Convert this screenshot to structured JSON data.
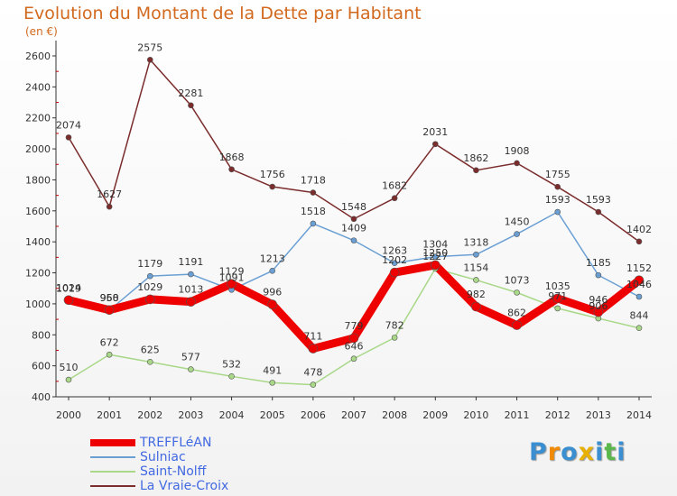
{
  "chart_data": {
    "type": "line",
    "title": "Evolution du Montant de la Dette par Habitant",
    "unit": "(en €)",
    "x": [
      "2000",
      "2001",
      "2002",
      "2003",
      "2004",
      "2005",
      "2006",
      "2007",
      "2008",
      "2009",
      "2010",
      "2011",
      "2012",
      "2013",
      "2014"
    ],
    "yticks": [
      400,
      600,
      800,
      1000,
      1200,
      1400,
      1600,
      1800,
      2000,
      2200,
      2400,
      2600
    ],
    "ylim": [
      400,
      2650
    ],
    "grid": false,
    "legend_placement": "bottom-left",
    "series": [
      {
        "name": "TREFFLéAN",
        "color": "#ee0000",
        "values": [
          1024,
          960,
          1029,
          1013,
          1129,
          996,
          711,
          779,
          1202,
          1250,
          982,
          862,
          1035,
          946,
          1152
        ]
      },
      {
        "name": "Sulniac",
        "color": "#6a9fd4",
        "values": [
          1019,
          958,
          1179,
          1191,
          1091,
          1213,
          1518,
          1409,
          1263,
          1304,
          1318,
          1450,
          1593,
          1185,
          1046
        ]
      },
      {
        "name": "Saint-Nolff",
        "color": "#a8d888",
        "values": [
          510,
          672,
          625,
          577,
          532,
          491,
          478,
          646,
          782,
          1227,
          1154,
          1073,
          971,
          906,
          844
        ]
      },
      {
        "name": "La Vraie-Croix",
        "color": "#7b2c2c",
        "values": [
          2074,
          1627,
          2575,
          2281,
          1868,
          1756,
          1718,
          1548,
          1682,
          2031,
          1862,
          1908,
          1755,
          1593,
          1402
        ]
      }
    ]
  },
  "logo": {
    "letters": [
      "P",
      "r",
      "o",
      "x",
      "i",
      "t",
      "i"
    ],
    "colors": [
      "#3b8fd0",
      "#f08a00",
      "#3b8fd0",
      "#e8b000",
      "#3b8fd0",
      "#5ab84a",
      "#3b8fd0"
    ]
  }
}
